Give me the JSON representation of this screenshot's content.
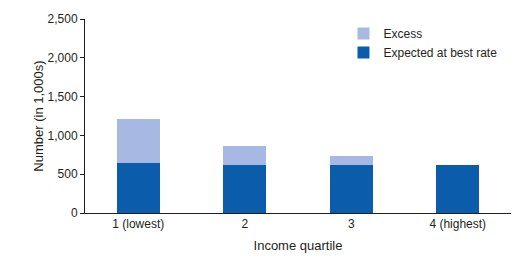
{
  "chart_data": {
    "type": "bar",
    "stacked": true,
    "x_label": "Income quartile",
    "y_label": "Number (in 1,000s)",
    "categories": [
      "1 (lowest)",
      "2",
      "3",
      "4 (highest)"
    ],
    "series": [
      {
        "name": "Expected at best rate",
        "color": "#0b5cab",
        "values": [
          650,
          620,
          620,
          620
        ]
      },
      {
        "name": "Excess",
        "color": "#a7b8e2",
        "values": [
          560,
          240,
          120,
          0
        ]
      }
    ],
    "ylim": [
      0,
      2500
    ],
    "yticks": [
      0,
      500,
      {
        "value": 1000,
        "label": "1,000"
      },
      {
        "value": 1500,
        "label": "1,500"
      },
      {
        "value": 2000,
        "label": "2,000"
      },
      {
        "value": 2500,
        "label": "2,500"
      }
    ],
    "grid": false,
    "legend": "upper right"
  }
}
